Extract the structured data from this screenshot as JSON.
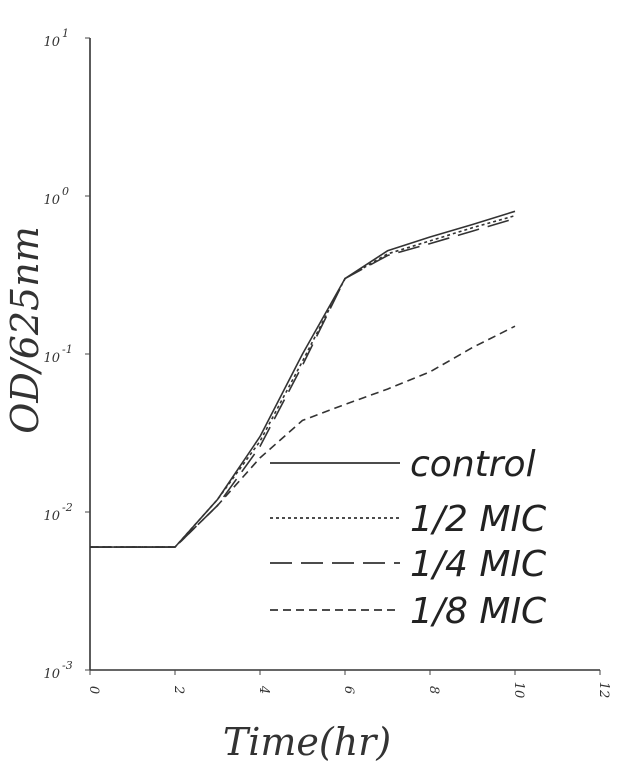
{
  "chart_data": {
    "type": "line",
    "xlabel": "Time(hr)",
    "ylabel": "OD/625nm",
    "y_scale": "log",
    "xlim": [
      0,
      12
    ],
    "ylim": [
      0.001,
      10
    ],
    "x_ticks": [
      "0",
      "2",
      "4",
      "6",
      "8",
      "10",
      "12"
    ],
    "y_ticks": [
      {
        "base": "10",
        "exp": "-3"
      },
      {
        "base": "10",
        "exp": "-2"
      },
      {
        "base": "10",
        "exp": "-1"
      },
      {
        "base": "10",
        "exp": "0"
      },
      {
        "base": "10",
        "exp": "1"
      }
    ],
    "legend_position": "bottom-right",
    "series": [
      {
        "name": "control",
        "style": "solid",
        "x": [
          0,
          2,
          3,
          4,
          5,
          6,
          7,
          8,
          9,
          10
        ],
        "y": [
          0.006,
          0.006,
          0.012,
          0.03,
          0.1,
          0.3,
          0.45,
          0.55,
          0.66,
          0.8
        ]
      },
      {
        "name": "1/2 MIC",
        "style": "dotted",
        "x": [
          0,
          2,
          3,
          4,
          5,
          6,
          7,
          8,
          9,
          10
        ],
        "y": [
          0.006,
          0.006,
          0.012,
          0.028,
          0.09,
          0.3,
          0.43,
          0.52,
          0.63,
          0.75
        ]
      },
      {
        "name": "1/4 MIC",
        "style": "long-dash",
        "x": [
          0,
          2,
          3,
          4,
          5,
          6,
          7,
          8,
          9,
          10
        ],
        "y": [
          0.006,
          0.006,
          0.011,
          0.026,
          0.085,
          0.3,
          0.42,
          0.5,
          0.6,
          0.72
        ]
      },
      {
        "name": "1/8 MIC",
        "style": "short-dash",
        "x": [
          0,
          2,
          3,
          4,
          5,
          6,
          7,
          8,
          9,
          10
        ],
        "y": [
          0.006,
          0.006,
          0.011,
          0.022,
          0.038,
          0.048,
          0.06,
          0.077,
          0.11,
          0.15
        ]
      }
    ]
  }
}
